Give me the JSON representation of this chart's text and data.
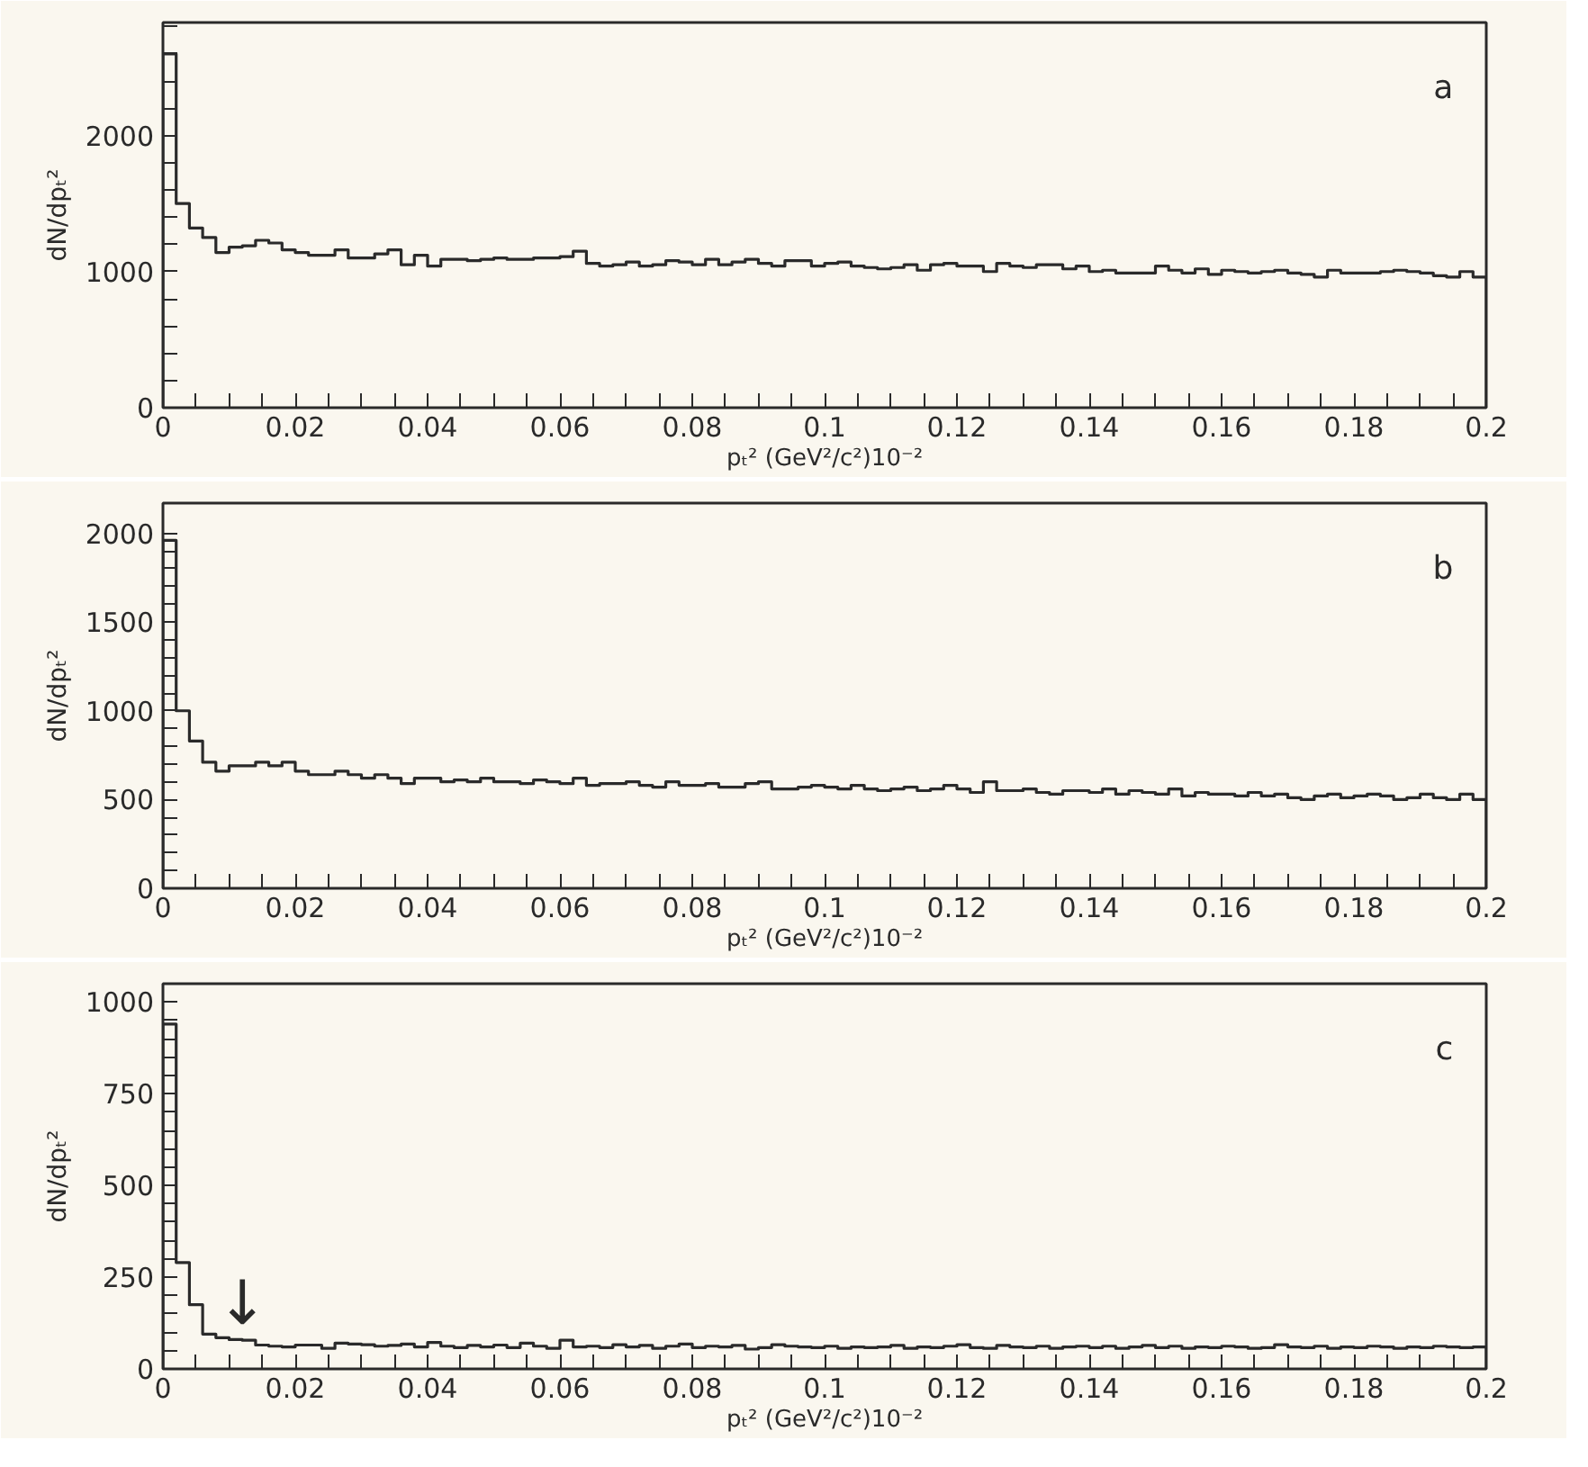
{
  "chart_data": [
    {
      "type": "histogram",
      "xlabel": "pₜ² (GeV²/c²)10⁻²",
      "ylabel": "dN/dpₜ²",
      "annotations": [
        "a"
      ],
      "color": "#2a2a2a",
      "grid": false,
      "bins": [
        0,
        0.002,
        0.004,
        0.006,
        0.008,
        0.01,
        0.012,
        0.014,
        0.016,
        0.018,
        0.02,
        0.022,
        0.024,
        0.026,
        0.028,
        0.03,
        0.032,
        0.034,
        0.036,
        0.038,
        0.04,
        0.042,
        0.044,
        0.046,
        0.048,
        0.05,
        0.052,
        0.054,
        0.056,
        0.058,
        0.06,
        0.062,
        0.064,
        0.066,
        0.068,
        0.07,
        0.072,
        0.074,
        0.076,
        0.078,
        0.08,
        0.082,
        0.084,
        0.086,
        0.088,
        0.09,
        0.092,
        0.094,
        0.096,
        0.098,
        0.1,
        0.102,
        0.104,
        0.106,
        0.108,
        0.11,
        0.112,
        0.114,
        0.116,
        0.118,
        0.12,
        0.122,
        0.124,
        0.126,
        0.128,
        0.13,
        0.132,
        0.134,
        0.136,
        0.138,
        0.14,
        0.142,
        0.144,
        0.146,
        0.148,
        0.15,
        0.152,
        0.154,
        0.156,
        0.158,
        0.16,
        0.162,
        0.164,
        0.166,
        0.168,
        0.17,
        0.172,
        0.174,
        0.176,
        0.178,
        0.18,
        0.182,
        0.184,
        0.186,
        0.188,
        0.19,
        0.192,
        0.194,
        0.196,
        0.198,
        0.2
      ],
      "values": [
        2600,
        1500,
        1320,
        1250,
        1140,
        1180,
        1190,
        1230,
        1210,
        1160,
        1140,
        1120,
        1120,
        1160,
        1100,
        1100,
        1130,
        1160,
        1050,
        1120,
        1040,
        1090,
        1090,
        1080,
        1090,
        1100,
        1090,
        1090,
        1100,
        1100,
        1110,
        1150,
        1060,
        1040,
        1050,
        1070,
        1040,
        1050,
        1080,
        1070,
        1050,
        1090,
        1050,
        1070,
        1090,
        1060,
        1040,
        1080,
        1080,
        1040,
        1060,
        1070,
        1040,
        1030,
        1020,
        1030,
        1050,
        1010,
        1050,
        1060,
        1040,
        1040,
        1000,
        1060,
        1040,
        1030,
        1050,
        1050,
        1020,
        1040,
        1000,
        1010,
        990,
        990,
        990,
        1040,
        1010,
        990,
        1020,
        980,
        1010,
        1000,
        990,
        1000,
        1010,
        990,
        980,
        960,
        1010,
        990,
        990,
        990,
        1000,
        1010,
        1000,
        990,
        970,
        960,
        1000,
        960
      ],
      "xlim": [
        0,
        0.2
      ],
      "ylim": [
        0,
        2830
      ],
      "xticks": [
        0,
        {
          "value": 0.005,
          "label": null
        },
        {
          "value": 0.01,
          "label": null
        },
        {
          "value": 0.015,
          "label": null
        },
        0.02,
        {
          "value": 0.025,
          "label": null
        },
        {
          "value": 0.03,
          "label": null
        },
        {
          "value": 0.035,
          "label": null
        },
        0.04,
        {
          "value": 0.045,
          "label": null
        },
        {
          "value": 0.05,
          "label": null
        },
        {
          "value": 0.055,
          "label": null
        },
        0.06,
        {
          "value": 0.065,
          "label": null
        },
        {
          "value": 0.07,
          "label": null
        },
        {
          "value": 0.075,
          "label": null
        },
        0.08,
        {
          "value": 0.085,
          "label": null
        },
        {
          "value": 0.09,
          "label": null
        },
        {
          "value": 0.095,
          "label": null
        },
        0.1,
        {
          "value": 0.105,
          "label": null
        },
        {
          "value": 0.11,
          "label": null
        },
        {
          "value": 0.115,
          "label": null
        },
        0.12,
        {
          "value": 0.125,
          "label": null
        },
        {
          "value": 0.13,
          "label": null
        },
        {
          "value": 0.135,
          "label": null
        },
        0.14,
        {
          "value": 0.145,
          "label": null
        },
        {
          "value": 0.15,
          "label": null
        },
        {
          "value": 0.155,
          "label": null
        },
        0.16,
        {
          "value": 0.165,
          "label": null
        },
        {
          "value": 0.17,
          "label": null
        },
        {
          "value": 0.175,
          "label": null
        },
        0.18,
        {
          "value": 0.185,
          "label": null
        },
        {
          "value": 0.19,
          "label": null
        },
        {
          "value": 0.195,
          "label": null
        },
        0.2
      ],
      "yticks": [
        0,
        {
          "value": 200,
          "label": null
        },
        {
          "value": 400,
          "label": null
        },
        {
          "value": 600,
          "label": null
        },
        {
          "value": 800,
          "label": null
        },
        1000,
        {
          "value": 1200,
          "label": null
        },
        {
          "value": 1400,
          "label": null
        },
        {
          "value": 1600,
          "label": null
        },
        {
          "value": 1800,
          "label": null
        },
        2000,
        {
          "value": 2200,
          "label": null
        },
        {
          "value": 2400,
          "label": null
        },
        {
          "value": 2600,
          "label": null
        },
        {
          "value": 2800,
          "label": null
        }
      ]
    },
    {
      "type": "histogram",
      "xlabel": "pₜ² (GeV²/c²)10⁻²",
      "ylabel": "dN/dpₜ²",
      "annotations": [
        "b"
      ],
      "color": "#2a2a2a",
      "grid": false,
      "bins": [
        0,
        0.002,
        0.004,
        0.006,
        0.008,
        0.01,
        0.012,
        0.014,
        0.016,
        0.018,
        0.02,
        0.022,
        0.024,
        0.026,
        0.028,
        0.03,
        0.032,
        0.034,
        0.036,
        0.038,
        0.04,
        0.042,
        0.044,
        0.046,
        0.048,
        0.05,
        0.052,
        0.054,
        0.056,
        0.058,
        0.06,
        0.062,
        0.064,
        0.066,
        0.068,
        0.07,
        0.072,
        0.074,
        0.076,
        0.078,
        0.08,
        0.082,
        0.084,
        0.086,
        0.088,
        0.09,
        0.092,
        0.094,
        0.096,
        0.098,
        0.1,
        0.102,
        0.104,
        0.106,
        0.108,
        0.11,
        0.112,
        0.114,
        0.116,
        0.118,
        0.12,
        0.122,
        0.124,
        0.126,
        0.128,
        0.13,
        0.132,
        0.134,
        0.136,
        0.138,
        0.14,
        0.142,
        0.144,
        0.146,
        0.148,
        0.15,
        0.152,
        0.154,
        0.156,
        0.158,
        0.16,
        0.162,
        0.164,
        0.166,
        0.168,
        0.17,
        0.172,
        0.174,
        0.176,
        0.178,
        0.18,
        0.182,
        0.184,
        0.186,
        0.188,
        0.19,
        0.192,
        0.194,
        0.196,
        0.198,
        0.2
      ],
      "values": [
        1960,
        1000,
        830,
        710,
        660,
        690,
        690,
        710,
        690,
        710,
        660,
        640,
        640,
        660,
        640,
        620,
        640,
        620,
        590,
        620,
        620,
        600,
        610,
        600,
        620,
        600,
        600,
        590,
        610,
        600,
        590,
        620,
        580,
        590,
        590,
        600,
        580,
        570,
        600,
        580,
        580,
        590,
        570,
        570,
        590,
        600,
        560,
        560,
        570,
        580,
        570,
        560,
        580,
        560,
        550,
        560,
        570,
        550,
        560,
        580,
        560,
        540,
        600,
        550,
        550,
        560,
        540,
        530,
        550,
        550,
        540,
        560,
        530,
        550,
        540,
        530,
        560,
        520,
        540,
        530,
        530,
        520,
        540,
        520,
        530,
        510,
        500,
        520,
        530,
        510,
        520,
        530,
        520,
        500,
        510,
        530,
        510,
        500,
        530,
        500
      ],
      "xlim": [
        0,
        0.2
      ],
      "ylim": [
        0,
        2170
      ],
      "xticks": [
        0,
        {
          "value": 0.005,
          "label": null
        },
        {
          "value": 0.01,
          "label": null
        },
        {
          "value": 0.015,
          "label": null
        },
        0.02,
        {
          "value": 0.025,
          "label": null
        },
        {
          "value": 0.03,
          "label": null
        },
        {
          "value": 0.035,
          "label": null
        },
        0.04,
        {
          "value": 0.045,
          "label": null
        },
        {
          "value": 0.05,
          "label": null
        },
        {
          "value": 0.055,
          "label": null
        },
        0.06,
        {
          "value": 0.065,
          "label": null
        },
        {
          "value": 0.07,
          "label": null
        },
        {
          "value": 0.075,
          "label": null
        },
        0.08,
        {
          "value": 0.085,
          "label": null
        },
        {
          "value": 0.09,
          "label": null
        },
        {
          "value": 0.095,
          "label": null
        },
        0.1,
        {
          "value": 0.105,
          "label": null
        },
        {
          "value": 0.11,
          "label": null
        },
        {
          "value": 0.115,
          "label": null
        },
        0.12,
        {
          "value": 0.125,
          "label": null
        },
        {
          "value": 0.13,
          "label": null
        },
        {
          "value": 0.135,
          "label": null
        },
        0.14,
        {
          "value": 0.145,
          "label": null
        },
        {
          "value": 0.15,
          "label": null
        },
        {
          "value": 0.155,
          "label": null
        },
        0.16,
        {
          "value": 0.165,
          "label": null
        },
        {
          "value": 0.17,
          "label": null
        },
        {
          "value": 0.175,
          "label": null
        },
        0.18,
        {
          "value": 0.185,
          "label": null
        },
        {
          "value": 0.19,
          "label": null
        },
        {
          "value": 0.195,
          "label": null
        },
        0.2
      ],
      "yticks": [
        0,
        {
          "value": 100,
          "label": null
        },
        {
          "value": 200,
          "label": null
        },
        {
          "value": 300,
          "label": null
        },
        {
          "value": 400,
          "label": null
        },
        500,
        {
          "value": 600,
          "label": null
        },
        {
          "value": 700,
          "label": null
        },
        {
          "value": 800,
          "label": null
        },
        {
          "value": 900,
          "label": null
        },
        1000,
        {
          "value": 1100,
          "label": null
        },
        {
          "value": 1200,
          "label": null
        },
        {
          "value": 1300,
          "label": null
        },
        {
          "value": 1400,
          "label": null
        },
        1500,
        {
          "value": 1600,
          "label": null
        },
        {
          "value": 1700,
          "label": null
        },
        {
          "value": 1800,
          "label": null
        },
        {
          "value": 1900,
          "label": null
        },
        2000
      ]
    },
    {
      "type": "histogram",
      "xlabel": "pₜ² (GeV²/c²)10⁻²",
      "ylabel": "dN/dpₜ²",
      "annotations": [
        "c",
        {
          "text": "↓",
          "x": 0.012,
          "y": 78
        }
      ],
      "color": "#2a2a2a",
      "grid": false,
      "bins": [
        0,
        0.002,
        0.004,
        0.006,
        0.008,
        0.01,
        0.012,
        0.014,
        0.016,
        0.018,
        0.02,
        0.022,
        0.024,
        0.026,
        0.028,
        0.03,
        0.032,
        0.034,
        0.036,
        0.038,
        0.04,
        0.042,
        0.044,
        0.046,
        0.048,
        0.05,
        0.052,
        0.054,
        0.056,
        0.058,
        0.06,
        0.062,
        0.064,
        0.066,
        0.068,
        0.07,
        0.072,
        0.074,
        0.076,
        0.078,
        0.08,
        0.082,
        0.084,
        0.086,
        0.088,
        0.09,
        0.092,
        0.094,
        0.096,
        0.098,
        0.1,
        0.102,
        0.104,
        0.106,
        0.108,
        0.11,
        0.112,
        0.114,
        0.116,
        0.118,
        0.12,
        0.122,
        0.124,
        0.126,
        0.128,
        0.13,
        0.132,
        0.134,
        0.136,
        0.138,
        0.14,
        0.142,
        0.144,
        0.146,
        0.148,
        0.15,
        0.152,
        0.154,
        0.156,
        0.158,
        0.16,
        0.162,
        0.164,
        0.166,
        0.168,
        0.17,
        0.172,
        0.174,
        0.176,
        0.178,
        0.18,
        0.182,
        0.184,
        0.186,
        0.188,
        0.19,
        0.192,
        0.194,
        0.196,
        0.198,
        0.2
      ],
      "values": [
        940,
        290,
        175,
        95,
        85,
        80,
        78,
        65,
        62,
        60,
        65,
        65,
        56,
        70,
        68,
        66,
        62,
        64,
        68,
        60,
        72,
        62,
        58,
        64,
        60,
        65,
        58,
        70,
        62,
        56,
        78,
        60,
        62,
        58,
        66,
        60,
        64,
        56,
        62,
        68,
        58,
        62,
        60,
        64,
        54,
        58,
        66,
        62,
        60,
        58,
        62,
        56,
        60,
        58,
        60,
        64,
        56,
        60,
        58,
        62,
        66,
        58,
        56,
        64,
        60,
        58,
        62,
        56,
        60,
        62,
        58,
        62,
        56,
        60,
        64,
        58,
        62,
        56,
        60,
        58,
        62,
        60,
        56,
        58,
        66,
        60,
        58,
        62,
        56,
        60,
        58,
        62,
        60,
        56,
        60,
        58,
        62,
        60,
        58,
        60
      ],
      "xlim": [
        0,
        0.2
      ],
      "ylim": [
        0,
        1050
      ],
      "xticks": [
        0,
        {
          "value": 0.005,
          "label": null
        },
        {
          "value": 0.01,
          "label": null
        },
        {
          "value": 0.015,
          "label": null
        },
        0.02,
        {
          "value": 0.025,
          "label": null
        },
        {
          "value": 0.03,
          "label": null
        },
        {
          "value": 0.035,
          "label": null
        },
        0.04,
        {
          "value": 0.045,
          "label": null
        },
        {
          "value": 0.05,
          "label": null
        },
        {
          "value": 0.055,
          "label": null
        },
        0.06,
        {
          "value": 0.065,
          "label": null
        },
        {
          "value": 0.07,
          "label": null
        },
        {
          "value": 0.075,
          "label": null
        },
        0.08,
        {
          "value": 0.085,
          "label": null
        },
        {
          "value": 0.09,
          "label": null
        },
        {
          "value": 0.095,
          "label": null
        },
        0.1,
        {
          "value": 0.105,
          "label": null
        },
        {
          "value": 0.11,
          "label": null
        },
        {
          "value": 0.115,
          "label": null
        },
        0.12,
        {
          "value": 0.125,
          "label": null
        },
        {
          "value": 0.13,
          "label": null
        },
        {
          "value": 0.135,
          "label": null
        },
        0.14,
        {
          "value": 0.145,
          "label": null
        },
        {
          "value": 0.15,
          "label": null
        },
        {
          "value": 0.155,
          "label": null
        },
        0.16,
        {
          "value": 0.165,
          "label": null
        },
        {
          "value": 0.17,
          "label": null
        },
        {
          "value": 0.175,
          "label": null
        },
        0.18,
        {
          "value": 0.185,
          "label": null
        },
        {
          "value": 0.19,
          "label": null
        },
        {
          "value": 0.195,
          "label": null
        },
        0.2
      ],
      "yticks": [
        0,
        {
          "value": 50,
          "label": null
        },
        {
          "value": 100,
          "label": null
        },
        {
          "value": 150,
          "label": null
        },
        {
          "value": 200,
          "label": null
        },
        250,
        {
          "value": 300,
          "label": null
        },
        {
          "value": 350,
          "label": null
        },
        {
          "value": 400,
          "label": null
        },
        {
          "value": 450,
          "label": null
        },
        500,
        {
          "value": 550,
          "label": null
        },
        {
          "value": 600,
          "label": null
        },
        {
          "value": 650,
          "label": null
        },
        {
          "value": 700,
          "label": null
        },
        750,
        {
          "value": 800,
          "label": null
        },
        {
          "value": 850,
          "label": null
        },
        {
          "value": 900,
          "label": null
        },
        {
          "value": 950,
          "label": null
        },
        1000
      ]
    }
  ]
}
